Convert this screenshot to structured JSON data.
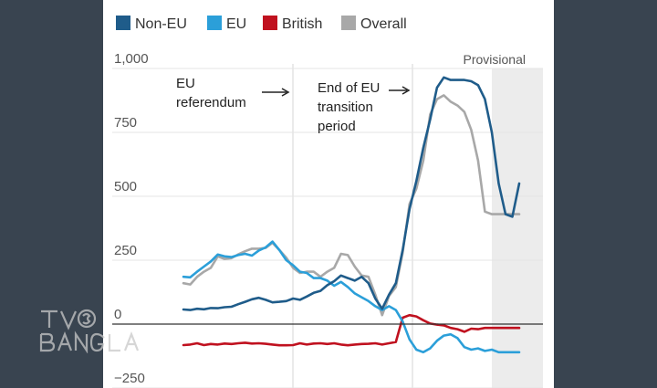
{
  "chart_data": {
    "type": "line",
    "legend": [
      {
        "name": "Non-EU",
        "color": "#1f5c8a"
      },
      {
        "name": "EU",
        "color": "#2b9fd9"
      },
      {
        "name": "British",
        "color": "#c0111f"
      },
      {
        "name": "Overall",
        "color": "#a8a8a8"
      }
    ],
    "yticks": [
      "1,000",
      "750",
      "500",
      "250",
      "0",
      "−250"
    ],
    "ylim": [
      -250,
      1000
    ],
    "provisional_label": "Provisional",
    "annotations": [
      {
        "lines": [
          "EU",
          "referendum"
        ]
      },
      {
        "lines": [
          "End of EU",
          "transition",
          "period"
        ]
      }
    ],
    "series": [
      {
        "name": "Non-EU",
        "color": "#1f5c8a",
        "x": [
          0,
          1,
          2,
          3,
          4,
          5,
          6,
          7,
          8,
          9,
          10,
          11,
          12,
          13,
          14,
          15,
          16,
          17,
          18,
          19,
          20,
          21,
          22,
          23,
          24,
          25,
          26,
          27,
          28,
          29,
          30,
          31,
          32,
          33,
          34,
          35,
          36,
          37,
          38,
          39,
          40,
          41,
          42,
          43,
          44,
          45,
          46,
          47,
          48,
          49
        ],
        "values": [
          57,
          55,
          60,
          58,
          63,
          62,
          66,
          68,
          78,
          87,
          97,
          103,
          95,
          85,
          87,
          90,
          100,
          95,
          108,
          122,
          130,
          152,
          168,
          190,
          180,
          170,
          185,
          160,
          100,
          60,
          115,
          160,
          290,
          450,
          560,
          690,
          800,
          925,
          965,
          955,
          955,
          955,
          950,
          935,
          880,
          750,
          550,
          430,
          420,
          550
        ]
      },
      {
        "name": "EU",
        "color": "#2b9fd9",
        "x": [
          0,
          1,
          2,
          3,
          4,
          5,
          6,
          7,
          8,
          9,
          10,
          11,
          12,
          13,
          14,
          15,
          16,
          17,
          18,
          19,
          20,
          21,
          22,
          23,
          24,
          25,
          26,
          27,
          28,
          29,
          30,
          31,
          32,
          33,
          34,
          35,
          36,
          37,
          38,
          39,
          40,
          41,
          42,
          43,
          44,
          45,
          46,
          47,
          48,
          49
        ],
        "values": [
          185,
          183,
          205,
          225,
          245,
          272,
          265,
          262,
          270,
          275,
          268,
          288,
          300,
          323,
          290,
          250,
          230,
          205,
          200,
          180,
          180,
          170,
          150,
          165,
          145,
          120,
          105,
          90,
          70,
          55,
          70,
          55,
          10,
          -60,
          -100,
          -110,
          -95,
          -65,
          -45,
          -40,
          -55,
          -90,
          -100,
          -95,
          -105,
          -100,
          -110,
          -110,
          -110,
          -110
        ]
      },
      {
        "name": "British",
        "color": "#c0111f",
        "x": [
          0,
          1,
          2,
          3,
          4,
          5,
          6,
          7,
          8,
          9,
          10,
          11,
          12,
          13,
          14,
          15,
          16,
          17,
          18,
          19,
          20,
          21,
          22,
          23,
          24,
          25,
          26,
          27,
          28,
          29,
          30,
          31,
          32,
          33,
          34,
          35,
          36,
          37,
          38,
          39,
          40,
          41,
          42,
          43,
          44,
          45,
          46,
          47,
          48,
          49
        ],
        "values": [
          -82,
          -80,
          -75,
          -82,
          -78,
          -80,
          -76,
          -78,
          -75,
          -73,
          -76,
          -75,
          -77,
          -80,
          -83,
          -83,
          -82,
          -75,
          -80,
          -76,
          -75,
          -78,
          -75,
          -80,
          -83,
          -80,
          -78,
          -77,
          -75,
          -80,
          -75,
          -70,
          25,
          35,
          30,
          15,
          2,
          -2,
          -5,
          -15,
          -20,
          -30,
          -18,
          -20,
          -15,
          -15,
          -15,
          -15,
          -15,
          -15
        ]
      },
      {
        "name": "Overall",
        "color": "#a8a8a8",
        "x": [
          0,
          1,
          2,
          3,
          4,
          5,
          6,
          7,
          8,
          9,
          10,
          11,
          12,
          13,
          14,
          15,
          16,
          17,
          18,
          19,
          20,
          21,
          22,
          23,
          24,
          25,
          26,
          27,
          28,
          29,
          30,
          31,
          32,
          33,
          34,
          35,
          36,
          37,
          38,
          39,
          40,
          41,
          42,
          43,
          44,
          45,
          46,
          47,
          48,
          49
        ],
        "values": [
          160,
          155,
          185,
          205,
          220,
          265,
          255,
          258,
          273,
          285,
          295,
          295,
          298,
          318,
          290,
          260,
          220,
          200,
          205,
          205,
          185,
          205,
          220,
          275,
          270,
          225,
          190,
          185,
          115,
          35,
          110,
          145,
          280,
          470,
          530,
          640,
          820,
          880,
          895,
          870,
          855,
          830,
          760,
          640,
          440,
          430,
          430,
          430,
          430,
          430
        ]
      }
    ]
  }
}
